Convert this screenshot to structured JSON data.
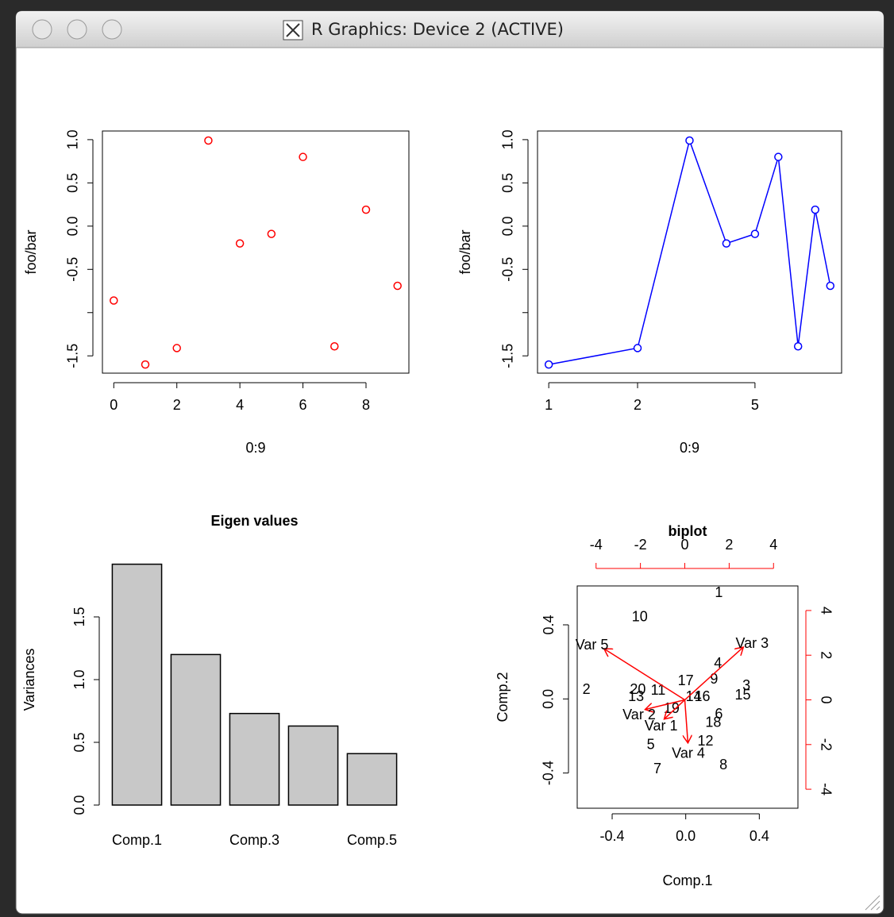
{
  "window": {
    "title": "R Graphics: Device 2 (ACTIVE)"
  },
  "chart_data": [
    {
      "type": "scatter",
      "x": [
        0,
        1,
        2,
        3,
        4,
        5,
        6,
        7,
        8,
        9
      ],
      "values": [
        -0.86,
        -1.6,
        -1.41,
        0.99,
        -0.2,
        -0.09,
        0.8,
        -1.39,
        0.19,
        -0.69
      ],
      "color": "#ff0000",
      "xlim": [
        -0.36,
        9.36
      ],
      "ylim": [
        -1.7,
        1.1
      ],
      "xticks": [
        0,
        2,
        4,
        6,
        8
      ],
      "yticks": [
        -1.5,
        {
          "value": -1,
          "label": null
        },
        -0.5,
        {
          "value": 0,
          "label": "0.0"
        },
        0.5,
        {
          "value": 1,
          "label": "1.0"
        }
      ],
      "xlabel": "0:9",
      "ylabel": "foo/bar"
    },
    {
      "type": "line",
      "x": [
        1,
        2,
        3,
        4,
        5,
        6,
        7,
        8,
        9
      ],
      "values": [
        -1.6,
        -1.41,
        0.99,
        -0.2,
        -0.09,
        0.8,
        -1.39,
        0.19,
        -0.69
      ],
      "color": "#0000ff",
      "xscale": "log",
      "xlim": [
        0.916,
        9.83
      ],
      "ylim": [
        -1.7,
        1.1
      ],
      "xticks": [
        1,
        2,
        5
      ],
      "yticks": [
        -1.5,
        {
          "value": -1,
          "label": null
        },
        -0.5,
        {
          "value": 0,
          "label": "0.0"
        },
        0.5,
        {
          "value": 1,
          "label": "1.0"
        }
      ],
      "xlabel": "0:9",
      "ylabel": "foo/bar"
    },
    {
      "type": "bar",
      "title": "Eigen values",
      "categories": [
        "Comp.1",
        null,
        "Comp.3",
        null,
        "Comp.5"
      ],
      "values": [
        1.92,
        1.2,
        0.73,
        0.63,
        0.41
      ],
      "color": "#c8c8c8",
      "ylim": [
        0,
        2
      ],
      "yticks": [
        {
          "value": 0,
          "label": "0.0"
        },
        0.5,
        {
          "value": 1,
          "label": "1.0"
        },
        1.5
      ],
      "ylabel": "Variances"
    },
    {
      "type": "biplot",
      "title": "biplot",
      "xlabel": "Comp.1",
      "ylabel": "Comp.2",
      "xlim": [
        -0.59,
        0.61
      ],
      "ylim": [
        -0.59,
        0.61
      ],
      "xticks": [
        {
          "value": -0.4,
          "label": "-0.4"
        },
        {
          "value": 0,
          "label": "0.0"
        },
        {
          "value": 0.4,
          "label": "0.4"
        }
      ],
      "yticks": [
        {
          "value": -0.4,
          "label": "-0.4"
        },
        {
          "value": 0,
          "label": "0.0"
        },
        {
          "value": 0.4,
          "label": "0.4"
        }
      ],
      "x2lim": [
        -4.85,
        5.1
      ],
      "y2lim": [
        -4.85,
        5.1
      ],
      "x2ticks": [
        -4,
        -2,
        0,
        2,
        4
      ],
      "y2ticks": [
        -4,
        -2,
        0,
        2,
        4
      ],
      "points": {
        "labels": [
          "1",
          "2",
          "3",
          "4",
          "5",
          "6",
          "7",
          "8",
          "9",
          "10",
          "11",
          "12",
          "13",
          "14",
          "15",
          "16",
          "17",
          "18",
          "19",
          "20"
        ],
        "x": [
          0.18,
          -0.54,
          0.33,
          0.175,
          -0.19,
          0.18,
          -0.154,
          0.205,
          0.154,
          -0.25,
          -0.15,
          0.107,
          -0.27,
          0.043,
          0.31,
          0.09,
          0.0,
          0.15,
          -0.077,
          -0.26
        ],
        "y": [
          0.57,
          0.047,
          0.07,
          0.19,
          -0.25,
          -0.086,
          -0.38,
          -0.36,
          0.103,
          0.44,
          0.043,
          -0.23,
          0.009,
          0.009,
          0.017,
          0.009,
          0.094,
          -0.13,
          -0.056,
          0.047
        ]
      },
      "loadings": {
        "names": [
          "Var 1",
          "Var 2",
          "Var 3",
          "Var 4",
          "Var 5"
        ],
        "x": [
          -0.93,
          -1.79,
          2.64,
          0.14,
          -3.64
        ],
        "y": [
          -0.86,
          -0.43,
          2.36,
          -1.93,
          2.29
        ],
        "color": "#ff0000"
      }
    }
  ]
}
